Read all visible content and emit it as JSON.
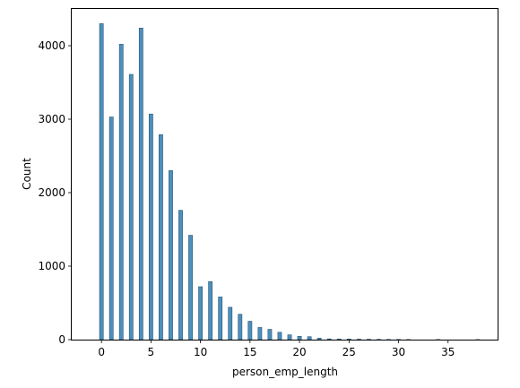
{
  "chart_data": {
    "type": "bar",
    "title": "",
    "xlabel": "person_emp_length",
    "ylabel": "Count",
    "xlim": [
      -3.0,
      40.0
    ],
    "ylim": [
      0,
      4500
    ],
    "grid": false,
    "bar_color": "#4c8fbd",
    "edge_color": "#2b5673",
    "bin_width": 0.38,
    "x_ticks": [
      0,
      5,
      10,
      15,
      20,
      25,
      30,
      35
    ],
    "y_ticks": [
      0,
      1000,
      2000,
      3000,
      4000
    ],
    "x": [
      0,
      1,
      2,
      3,
      4,
      5,
      6,
      7,
      8,
      9,
      10,
      11,
      12,
      13,
      14,
      15,
      16,
      17,
      18,
      19,
      20,
      21,
      22,
      23,
      24,
      25,
      26,
      27,
      28,
      29,
      30,
      31,
      34,
      38
    ],
    "values": [
      4300,
      3030,
      4020,
      3610,
      4240,
      3070,
      2790,
      2300,
      1760,
      1420,
      720,
      790,
      580,
      440,
      345,
      250,
      165,
      140,
      100,
      65,
      45,
      40,
      20,
      10,
      8,
      8,
      6,
      5,
      4,
      3,
      3,
      2,
      2,
      1
    ]
  }
}
